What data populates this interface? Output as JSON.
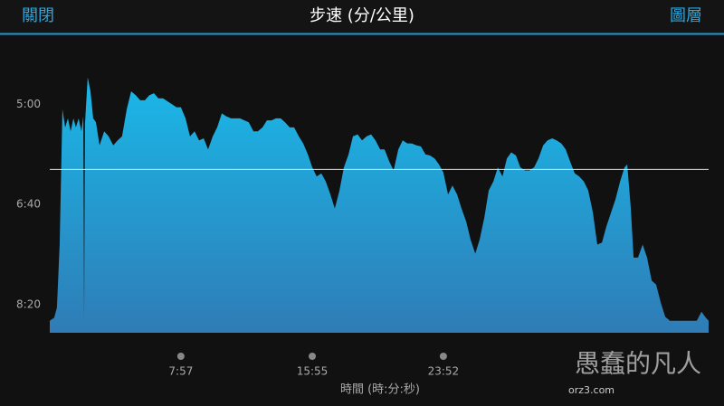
{
  "header": {
    "left": "關閉",
    "title": "步速 (分/公里)",
    "right": "圖層"
  },
  "watermark": {
    "title": "愚蠢的凡人",
    "site": "orz3.com"
  },
  "chart_data": {
    "type": "area",
    "xlabel": "時間 (時:分:秒)",
    "xlim": [
      0,
      2397
    ],
    "xticks": [
      {
        "value": 477,
        "label": "7:57"
      },
      {
        "value": 955,
        "label": "15:55"
      },
      {
        "value": 1432,
        "label": "23:52"
      }
    ],
    "ylim": [
      232,
      528
    ],
    "y_inverted": true,
    "yticks": [
      {
        "value": 300,
        "label": "5:00"
      },
      {
        "value": 400,
        "label": "6:40"
      },
      {
        "value": 500,
        "label": "8:20"
      }
    ],
    "average": 365,
    "color": "#1ab8e8",
    "x": [
      0,
      16,
      26,
      36,
      46,
      56,
      66,
      76,
      86,
      95,
      105,
      115,
      122,
      125,
      128,
      138,
      148,
      158,
      168,
      181,
      198,
      214,
      231,
      247,
      263,
      280,
      296,
      313,
      329,
      346,
      362,
      379,
      395,
      412,
      428,
      445,
      461,
      477,
      494,
      510,
      527,
      543,
      560,
      576,
      593,
      609,
      626,
      642,
      659,
      675,
      692,
      708,
      724,
      741,
      757,
      774,
      790,
      807,
      823,
      840,
      856,
      873,
      889,
      906,
      922,
      939,
      955,
      971,
      988,
      1004,
      1021,
      1037,
      1054,
      1070,
      1087,
      1103,
      1120,
      1136,
      1153,
      1169,
      1185,
      1202,
      1218,
      1235,
      1251,
      1268,
      1284,
      1301,
      1317,
      1334,
      1350,
      1367,
      1383,
      1400,
      1416,
      1432,
      1449,
      1465,
      1482,
      1498,
      1515,
      1531,
      1548,
      1564,
      1581,
      1597,
      1614,
      1630,
      1647,
      1663,
      1679,
      1696,
      1712,
      1729,
      1745,
      1762,
      1778,
      1795,
      1811,
      1828,
      1844,
      1861,
      1877,
      1893,
      1910,
      1926,
      1943,
      1959,
      1976,
      1992,
      2009,
      2025,
      2042,
      2058,
      2075,
      2091,
      2101,
      2114,
      2124,
      2140,
      2157,
      2173,
      2190,
      2206,
      2223,
      2239,
      2256,
      2272,
      2289,
      2322,
      2354,
      2371,
      2387,
      2397
    ],
    "values": [
      516,
      513,
      503,
      440,
      305,
      323,
      314,
      327,
      314,
      323,
      314,
      327,
      312,
      516,
      320,
      273,
      287,
      314,
      318,
      341,
      327,
      332,
      341,
      336,
      332,
      305,
      287,
      291,
      296,
      296,
      291,
      289,
      294,
      294,
      297,
      300,
      303,
      303,
      314,
      332,
      327,
      336,
      334,
      345,
      332,
      323,
      309,
      312,
      314,
      314,
      314,
      316,
      318,
      327,
      327,
      323,
      316,
      316,
      314,
      314,
      318,
      323,
      323,
      332,
      339,
      350,
      363,
      372,
      369,
      377,
      390,
      404,
      386,
      363,
      350,
      332,
      330,
      336,
      332,
      330,
      336,
      345,
      345,
      357,
      366,
      345,
      336,
      339,
      339,
      341,
      342,
      350,
      351,
      354,
      360,
      368,
      390,
      381,
      390,
      404,
      417,
      435,
      449,
      435,
      413,
      386,
      377,
      363,
      372,
      354,
      348,
      351,
      363,
      366,
      366,
      363,
      354,
      341,
      336,
      334,
      336,
      339,
      345,
      357,
      369,
      372,
      377,
      386,
      408,
      440,
      438,
      422,
      408,
      395,
      377,
      363,
      360,
      404,
      453,
      453,
      440,
      453,
      476,
      480,
      498,
      512,
      516,
      516,
      516,
      516,
      516,
      507,
      513,
      516
    ]
  }
}
